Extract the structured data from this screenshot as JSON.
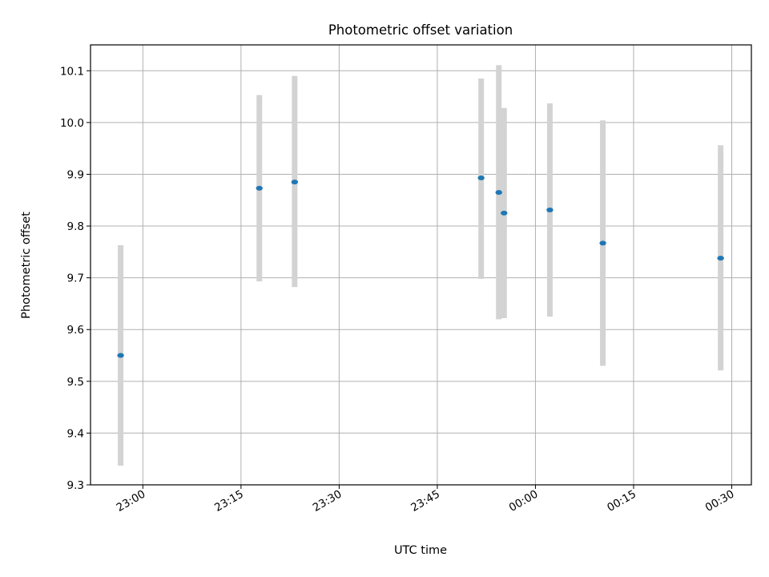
{
  "chart_data": {
    "type": "scatter",
    "title": "Photometric offset variation",
    "xlabel": "UTC time",
    "ylabel": "Photometric offset",
    "x_unit": "time (HH:MM, UTC)",
    "xlim": [
      "22:52",
      "00:33"
    ],
    "ylim": [
      9.3,
      10.15
    ],
    "x_ticks": [
      "23:00",
      "23:15",
      "23:30",
      "23:45",
      "00:00",
      "00:15",
      "00:30"
    ],
    "y_ticks": [
      "9.3",
      "9.4",
      "9.5",
      "9.6",
      "9.7",
      "9.8",
      "9.9",
      "10.0",
      "10.1"
    ],
    "grid": true,
    "marker_color": "#1f77b4",
    "errorbar_color": "#d3d3d3",
    "points": [
      {
        "x": "22:56.6",
        "y": 9.55,
        "ylow": 9.337,
        "yhigh": 9.763
      },
      {
        "x": "23:17.8",
        "y": 9.873,
        "ylow": 9.693,
        "yhigh": 10.053
      },
      {
        "x": "23:23.2",
        "y": 9.885,
        "ylow": 9.682,
        "yhigh": 10.09
      },
      {
        "x": "23:51.7",
        "y": 9.893,
        "ylow": 9.698,
        "yhigh": 10.085
      },
      {
        "x": "23:54.4",
        "y": 9.865,
        "ylow": 9.62,
        "yhigh": 10.111
      },
      {
        "x": "23:55.2",
        "y": 9.825,
        "ylow": 9.622,
        "yhigh": 10.028
      },
      {
        "x": "00:02.2",
        "y": 9.831,
        "ylow": 9.625,
        "yhigh": 10.037
      },
      {
        "x": "00:10.3",
        "y": 9.767,
        "ylow": 9.53,
        "yhigh": 10.004
      },
      {
        "x": "00:28.3",
        "y": 9.738,
        "ylow": 9.521,
        "yhigh": 9.956
      }
    ]
  }
}
